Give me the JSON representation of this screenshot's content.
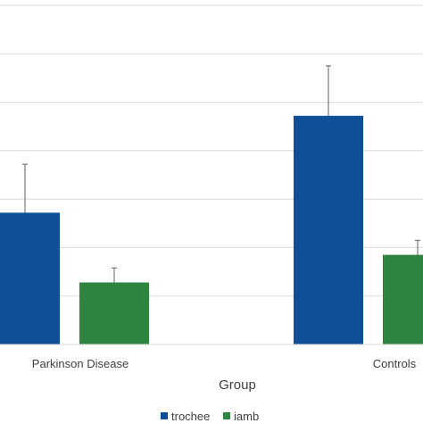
{
  "chart_data": {
    "type": "bar",
    "xlabel": "Group",
    "ylabel": "",
    "ylim": [
      0,
      7
    ],
    "grid": true,
    "legend_placement": "bottom",
    "categories": [
      "Parkinson Disease",
      "Controls"
    ],
    "series": [
      {
        "name": "trochee",
        "color": "#0f4f98",
        "values": [
          2.72,
          4.72
        ],
        "error": [
          1.0,
          1.03
        ]
      },
      {
        "name": "iamb",
        "color": "#2e8540",
        "values": [
          1.28,
          1.85
        ],
        "error": [
          0.3,
          0.3
        ]
      }
    ]
  }
}
